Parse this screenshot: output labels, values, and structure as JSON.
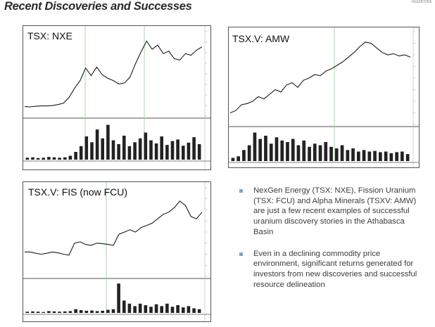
{
  "slide": {
    "title": "Recent Discoveries and Successes",
    "corner_text": "KEEMOORE"
  },
  "bullets": [
    "NexGen Energy (TSX: NXE), Fission Uranium (TSX: FCU) and Alpha Minerals (TSXV: AMW) are just a few recent examples of successful uranium discovery stories in the Athabasca Basin",
    "Even in a declining commodity price environment, significant returns generated for investors from new discoveries and successful resource delineation"
  ],
  "colors": {
    "bullet": "#7fa6c9",
    "price_line": "#1a1a1a",
    "volume_bar": "#222222",
    "grid": "#9ed39e"
  },
  "chart_data": [
    {
      "type": "line",
      "title": "TSX: NXE",
      "series": [
        {
          "values": [
            0.28,
            0.27,
            0.29,
            0.3,
            0.3,
            0.31,
            0.34,
            0.38,
            0.55,
            0.82,
            1.05,
            1.42,
            1.2,
            1.45,
            1.22,
            1.12,
            1.05,
            0.95,
            0.98,
            1.15,
            1.55,
            1.9,
            2.22,
            1.98,
            2.1,
            1.85,
            1.92,
            1.7,
            1.66,
            1.85,
            1.8,
            1.95,
            2.05
          ]
        }
      ],
      "volume": [
        0.05,
        0.06,
        0.04,
        0.05,
        0.07,
        0.06,
        0.05,
        0.06,
        0.1,
        0.2,
        0.35,
        0.6,
        0.45,
        0.78,
        0.55,
        0.9,
        0.5,
        0.4,
        0.62,
        0.35,
        0.45,
        0.55,
        0.7,
        0.5,
        0.42,
        0.6,
        0.38,
        0.48,
        0.52,
        0.36,
        0.44,
        0.58,
        0.4
      ],
      "ylim": [
        0,
        2.5
      ]
    },
    {
      "type": "line",
      "title": "TSX.V: AMW",
      "series": [
        {
          "values": [
            0.5,
            0.6,
            0.85,
            0.9,
            1.0,
            1.2,
            1.1,
            1.3,
            1.5,
            1.4,
            1.7,
            1.8,
            1.6,
            1.9,
            2.0,
            2.15,
            2.1,
            2.3,
            2.4,
            2.55,
            2.7,
            2.9,
            3.1,
            3.35,
            3.55,
            3.5,
            3.3,
            3.1,
            3.0,
            3.05,
            2.95,
            3.0,
            2.9
          ]
        }
      ],
      "volume": [
        0.1,
        0.15,
        0.35,
        0.5,
        0.9,
        0.7,
        0.8,
        0.55,
        0.75,
        0.65,
        0.6,
        0.7,
        0.5,
        0.65,
        0.45,
        0.55,
        0.5,
        0.6,
        0.45,
        0.4,
        0.5,
        0.35,
        0.4,
        0.3,
        0.35,
        0.3,
        0.32,
        0.28,
        0.3,
        0.25,
        0.28,
        0.3,
        0.22
      ],
      "ylim": [
        0,
        4.0
      ]
    },
    {
      "type": "line",
      "title": "TSX.V: FIS (now FCU)",
      "series": [
        {
          "values": [
            0.55,
            0.55,
            0.52,
            0.5,
            0.52,
            0.55,
            0.53,
            0.5,
            0.48,
            0.75,
            0.78,
            0.72,
            0.7,
            0.75,
            0.74,
            0.72,
            0.7,
            0.95,
            1.0,
            1.05,
            1.0,
            1.1,
            1.15,
            1.2,
            1.3,
            1.4,
            1.45,
            1.55,
            1.7,
            1.6,
            1.35,
            1.3,
            1.45
          ]
        }
      ],
      "volume": [
        0.04,
        0.05,
        0.04,
        0.03,
        0.06,
        0.05,
        0.04,
        0.05,
        0.06,
        0.12,
        0.09,
        0.07,
        0.08,
        0.06,
        0.07,
        0.1,
        0.12,
        0.95,
        0.4,
        0.3,
        0.22,
        0.3,
        0.25,
        0.2,
        0.28,
        0.22,
        0.3,
        0.2,
        0.25,
        0.18,
        0.22,
        0.15,
        0.12
      ],
      "ylim": [
        0,
        2.0
      ]
    }
  ]
}
